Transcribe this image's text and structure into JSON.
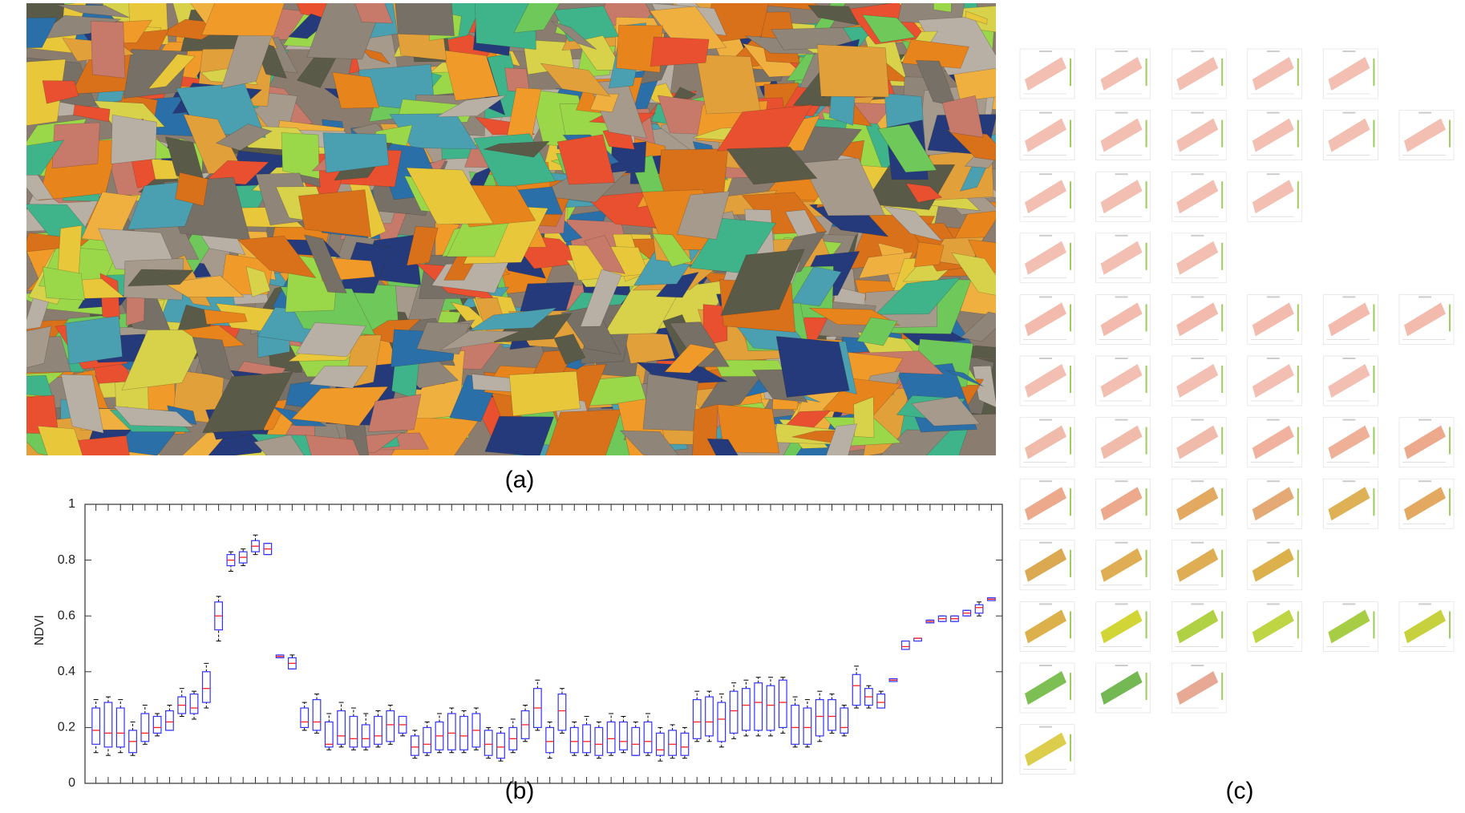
{
  "captions": [
    "(a)",
    "(b)",
    "(c)"
  ],
  "chart_data": {
    "type": "boxplot",
    "y_label": "NDVI",
    "categories": [
      null,
      null,
      null,
      null,
      null,
      null,
      null,
      null,
      null,
      null,
      null,
      null,
      null,
      null,
      null,
      null,
      null,
      null,
      null,
      null,
      null,
      null,
      null,
      null,
      null,
      null,
      null,
      null,
      null,
      null,
      null,
      null,
      null,
      null,
      null,
      null,
      null,
      null,
      null,
      null,
      null,
      null,
      null,
      null,
      null,
      null,
      null,
      null,
      null,
      null,
      null,
      null,
      null,
      null,
      null,
      null,
      null,
      null,
      null,
      null,
      null,
      null,
      null,
      null,
      null,
      null,
      null,
      null,
      null,
      null,
      null,
      null,
      null,
      null
    ],
    "box_color": "#3333ff",
    "median_color": "#ff2020",
    "ylim": [
      0,
      1
    ],
    "yticks": [
      0,
      0.2,
      0.4,
      0.6,
      0.8,
      1
    ],
    "min": [
      0.11,
      0.1,
      0.11,
      0.1,
      0.14,
      0.17,
      0.19,
      0.24,
      0.23,
      0.27,
      0.51,
      0.76,
      0.78,
      0.82,
      0.82,
      0.45,
      0.41,
      0.19,
      0.18,
      0.12,
      0.13,
      0.12,
      0.12,
      0.13,
      0.14,
      0.17,
      0.09,
      0.1,
      0.11,
      0.11,
      0.11,
      0.12,
      0.09,
      0.08,
      0.11,
      0.15,
      0.19,
      0.09,
      0.18,
      0.1,
      0.1,
      0.09,
      0.1,
      0.11,
      0.1,
      0.1,
      0.08,
      0.09,
      0.09,
      0.15,
      0.15,
      0.13,
      0.16,
      0.17,
      0.17,
      0.17,
      0.18,
      0.13,
      0.13,
      0.15,
      0.18,
      0.17,
      0.27,
      0.27,
      0.27,
      0.365,
      0.48,
      0.51,
      0.575,
      0.58,
      0.58,
      0.6,
      0.6,
      0.655
    ],
    "q1": [
      0.14,
      0.13,
      0.13,
      0.11,
      0.15,
      0.18,
      0.19,
      0.25,
      0.25,
      0.29,
      0.55,
      0.78,
      0.79,
      0.83,
      0.82,
      0.45,
      0.41,
      0.2,
      0.19,
      0.13,
      0.14,
      0.13,
      0.13,
      0.14,
      0.15,
      0.18,
      0.1,
      0.11,
      0.12,
      0.12,
      0.12,
      0.13,
      0.1,
      0.09,
      0.12,
      0.16,
      0.2,
      0.11,
      0.19,
      0.11,
      0.11,
      0.1,
      0.11,
      0.12,
      0.1,
      0.11,
      0.1,
      0.1,
      0.1,
      0.16,
      0.17,
      0.15,
      0.18,
      0.19,
      0.19,
      0.19,
      0.2,
      0.14,
      0.14,
      0.17,
      0.19,
      0.18,
      0.28,
      0.28,
      0.27,
      0.365,
      0.48,
      0.51,
      0.575,
      0.58,
      0.58,
      0.6,
      0.61,
      0.655
    ],
    "median": [
      0.19,
      0.18,
      0.18,
      0.15,
      0.18,
      0.2,
      0.22,
      0.28,
      0.27,
      0.34,
      0.6,
      0.8,
      0.81,
      0.85,
      0.84,
      0.455,
      0.43,
      0.22,
      0.22,
      0.14,
      0.17,
      0.16,
      0.16,
      0.17,
      0.21,
      0.21,
      0.13,
      0.14,
      0.17,
      0.18,
      0.17,
      0.19,
      0.14,
      0.13,
      0.16,
      0.21,
      0.27,
      0.15,
      0.26,
      0.15,
      0.15,
      0.14,
      0.16,
      0.15,
      0.14,
      0.15,
      0.12,
      0.14,
      0.13,
      0.22,
      0.22,
      0.23,
      0.26,
      0.28,
      0.29,
      0.28,
      0.29,
      0.2,
      0.2,
      0.24,
      0.24,
      0.2,
      0.35,
      0.31,
      0.29,
      0.37,
      0.49,
      0.52,
      0.58,
      0.59,
      0.59,
      0.61,
      0.63,
      0.66
    ],
    "q3": [
      0.27,
      0.29,
      0.27,
      0.19,
      0.25,
      0.24,
      0.26,
      0.31,
      0.32,
      0.4,
      0.65,
      0.82,
      0.83,
      0.87,
      0.86,
      0.46,
      0.45,
      0.27,
      0.3,
      0.22,
      0.26,
      0.24,
      0.21,
      0.24,
      0.26,
      0.24,
      0.17,
      0.2,
      0.22,
      0.25,
      0.24,
      0.25,
      0.19,
      0.18,
      0.2,
      0.26,
      0.34,
      0.2,
      0.32,
      0.2,
      0.21,
      0.2,
      0.22,
      0.22,
      0.2,
      0.22,
      0.18,
      0.19,
      0.18,
      0.3,
      0.31,
      0.29,
      0.33,
      0.34,
      0.36,
      0.35,
      0.37,
      0.28,
      0.27,
      0.3,
      0.3,
      0.27,
      0.39,
      0.34,
      0.32,
      0.375,
      0.51,
      0.52,
      0.585,
      0.6,
      0.6,
      0.62,
      0.64,
      0.665
    ],
    "max": [
      0.3,
      0.31,
      0.3,
      0.22,
      0.28,
      0.25,
      0.28,
      0.34,
      0.33,
      0.43,
      0.67,
      0.83,
      0.84,
      0.89,
      0.86,
      0.46,
      0.46,
      0.29,
      0.32,
      0.25,
      0.29,
      0.27,
      0.25,
      0.26,
      0.28,
      0.24,
      0.19,
      0.22,
      0.25,
      0.27,
      0.26,
      0.27,
      0.2,
      0.2,
      0.23,
      0.28,
      0.37,
      0.22,
      0.34,
      0.22,
      0.24,
      0.22,
      0.25,
      0.24,
      0.22,
      0.25,
      0.2,
      0.21,
      0.2,
      0.33,
      0.33,
      0.32,
      0.36,
      0.37,
      0.38,
      0.38,
      0.38,
      0.31,
      0.3,
      0.33,
      0.32,
      0.28,
      0.42,
      0.35,
      0.33,
      0.375,
      0.51,
      0.52,
      0.585,
      0.6,
      0.6,
      0.62,
      0.65,
      0.665
    ]
  }
}
